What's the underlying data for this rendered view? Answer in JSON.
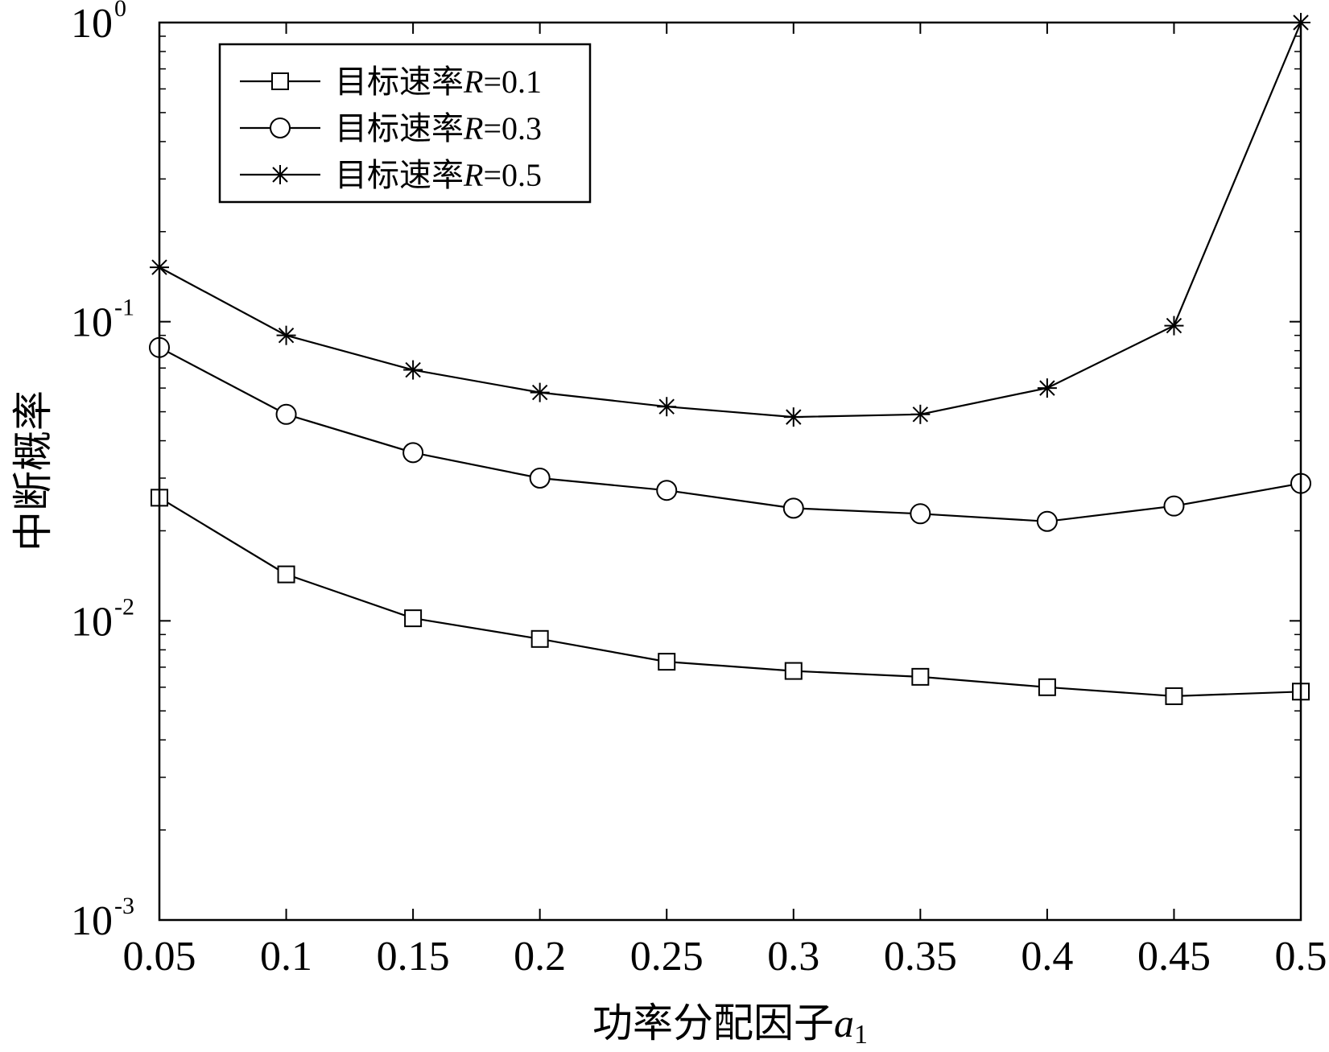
{
  "chart_data": {
    "type": "line",
    "xlabel": "功率分配因子",
    "xlabel_var": "a",
    "xlabel_sub": "1",
    "ylabel": "中断概率",
    "yscale": "log",
    "xlim": [
      0.05,
      0.5
    ],
    "ylim": [
      0.001,
      1
    ],
    "grid": false,
    "legend_position": "top-left",
    "x": [
      0.05,
      0.1,
      0.15,
      0.2,
      0.25,
      0.3,
      0.35,
      0.4,
      0.45,
      0.5
    ],
    "x_tick_labels": [
      "0.05",
      "0.1",
      "0.15",
      "0.2",
      "0.25",
      "0.3",
      "0.35",
      "0.4",
      "0.45",
      "0.5"
    ],
    "y_ticks": [
      {
        "value": 1,
        "base": "10",
        "exp": "0"
      },
      {
        "value": 0.1,
        "base": "10",
        "exp": "-1"
      },
      {
        "value": 0.01,
        "base": "10",
        "exp": "-2"
      },
      {
        "value": 0.001,
        "base": "10",
        "exp": "-3"
      }
    ],
    "series": [
      {
        "name_prefix": "目标速率",
        "name_var": "R",
        "name_suffix": "=0.1",
        "marker": "square",
        "values": [
          0.0258,
          0.0143,
          0.0102,
          0.0087,
          0.0073,
          0.0068,
          0.0065,
          0.006,
          0.0056,
          0.0058
        ]
      },
      {
        "name_prefix": "目标速率",
        "name_var": "R",
        "name_suffix": "=0.3",
        "marker": "circle",
        "values": [
          0.082,
          0.049,
          0.0365,
          0.03,
          0.0273,
          0.0238,
          0.0228,
          0.0215,
          0.0242,
          0.0288
        ]
      },
      {
        "name_prefix": "目标速率",
        "name_var": "R",
        "name_suffix": "=0.5",
        "marker": "star",
        "values": [
          0.152,
          0.09,
          0.069,
          0.058,
          0.052,
          0.048,
          0.049,
          0.06,
          0.097,
          1.0
        ]
      }
    ]
  }
}
